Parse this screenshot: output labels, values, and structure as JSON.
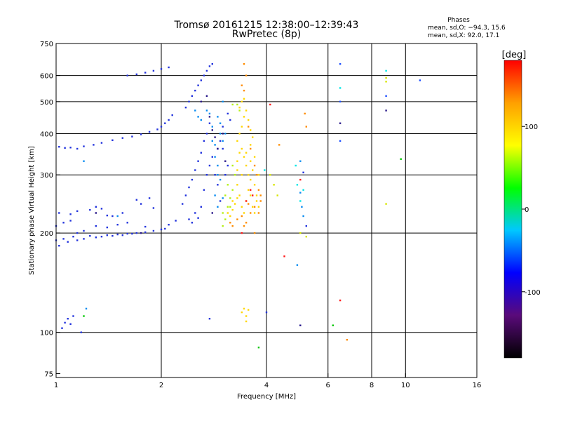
{
  "chart_data": {
    "type": "scatter",
    "title": "Tromsø 20161215 12:38:00–12:39:43",
    "subtitle": "RwPretec (8p)",
    "xlabel": "Frequency [MHz]",
    "ylabel": "Stationary phase Virtual Height [km]",
    "x_scale": "log",
    "y_scale": "log",
    "xlim": [
      1,
      16
    ],
    "ylim": [
      73,
      750
    ],
    "x_ticks": [
      1,
      2,
      4,
      6,
      8,
      10,
      16
    ],
    "y_ticks": [
      75,
      100,
      200,
      300,
      400,
      500,
      600,
      750
    ],
    "x_gridlines": [
      2,
      4,
      6,
      8,
      10
    ],
    "y_gridlines": [
      100,
      200,
      300,
      400,
      500,
      600
    ],
    "grid": true,
    "phases": {
      "title": "Phases",
      "line_o": "mean, sd,O: −94.3, 15.6",
      "line_x": "mean, sd,X:  92.0, 17.1"
    },
    "colorbar": {
      "label": "[deg]",
      "ticks": [
        100,
        0,
        -100
      ],
      "range": [
        -180,
        180
      ],
      "colors": [
        "#000000",
        "#5a0a7a",
        "#0000ff",
        "#00c8ff",
        "#00ff00",
        "#ffff00",
        "#ffa000",
        "#ff0000"
      ]
    },
    "series": [
      {
        "color": "#2233dd",
        "points": [
          [
            1.0,
            190
          ],
          [
            1.02,
            183
          ],
          [
            1.05,
            192
          ],
          [
            1.08,
            188
          ],
          [
            1.12,
            195
          ],
          [
            1.15,
            190
          ],
          [
            1.2,
            192
          ],
          [
            1.25,
            196
          ],
          [
            1.3,
            194
          ],
          [
            1.35,
            195
          ],
          [
            1.4,
            197
          ],
          [
            1.45,
            196
          ],
          [
            1.5,
            198
          ],
          [
            1.55,
            197
          ],
          [
            1.6,
            199
          ],
          [
            1.65,
            199
          ],
          [
            1.7,
            200
          ],
          [
            1.8,
            201
          ],
          [
            1.9,
            203
          ],
          [
            2.0,
            205
          ],
          [
            2.05,
            206
          ],
          [
            2.1,
            212
          ],
          [
            2.2,
            218
          ],
          [
            1.0,
            210
          ],
          [
            1.05,
            215
          ],
          [
            1.1,
            218
          ],
          [
            1.15,
            200
          ],
          [
            1.2,
            203
          ],
          [
            1.3,
            210
          ],
          [
            1.4,
            208
          ],
          [
            1.5,
            212
          ],
          [
            1.6,
            215
          ],
          [
            1.8,
            209
          ],
          [
            1.02,
            230
          ],
          [
            1.1,
            228
          ],
          [
            1.15,
            233
          ],
          [
            1.25,
            235
          ],
          [
            1.3,
            240
          ],
          [
            1.35,
            237
          ],
          [
            1.4,
            226
          ],
          [
            1.45,
            225
          ],
          [
            1.55,
            230
          ],
          [
            1.7,
            252
          ],
          [
            1.75,
            245
          ],
          [
            1.9,
            238
          ],
          [
            1.85,
            255
          ],
          [
            1.02,
            365
          ],
          [
            1.06,
            362
          ],
          [
            1.1,
            363
          ],
          [
            1.15,
            360
          ],
          [
            1.2,
            366
          ],
          [
            1.28,
            370
          ],
          [
            1.35,
            375
          ],
          [
            1.45,
            382
          ],
          [
            1.55,
            388
          ],
          [
            1.65,
            392
          ],
          [
            1.75,
            398
          ],
          [
            1.85,
            405
          ],
          [
            1.95,
            412
          ],
          [
            2.0,
            420
          ],
          [
            2.05,
            430
          ],
          [
            2.1,
            440
          ],
          [
            2.15,
            455
          ],
          [
            1.6,
            600
          ],
          [
            1.7,
            605
          ],
          [
            1.8,
            612
          ],
          [
            1.9,
            620
          ],
          [
            2.0,
            628
          ],
          [
            2.1,
            635
          ],
          [
            1.04,
            103
          ],
          [
            1.06,
            107
          ],
          [
            1.08,
            110
          ],
          [
            1.1,
            106
          ],
          [
            1.12,
            112
          ],
          [
            1.18,
            100
          ],
          [
            2.3,
            245
          ],
          [
            2.35,
            260
          ],
          [
            2.4,
            275
          ],
          [
            2.45,
            290
          ],
          [
            2.5,
            310
          ],
          [
            2.55,
            330
          ],
          [
            2.6,
            350
          ],
          [
            2.65,
            380
          ],
          [
            2.7,
            400
          ],
          [
            2.75,
            430
          ],
          [
            2.35,
            480
          ],
          [
            2.4,
            500
          ],
          [
            2.45,
            520
          ],
          [
            2.5,
            540
          ],
          [
            2.55,
            560
          ],
          [
            2.6,
            580
          ],
          [
            2.65,
            600
          ],
          [
            2.7,
            620
          ],
          [
            2.75,
            640
          ],
          [
            2.8,
            650
          ],
          [
            2.4,
            220
          ],
          [
            2.45,
            215
          ],
          [
            2.5,
            230
          ],
          [
            2.55,
            222
          ],
          [
            2.6,
            240
          ],
          [
            2.65,
            270
          ],
          [
            2.7,
            300
          ],
          [
            2.75,
            320
          ],
          [
            2.8,
            340
          ],
          [
            2.85,
            300
          ],
          [
            2.9,
            280
          ],
          [
            2.95,
            250
          ],
          [
            2.9,
            360
          ],
          [
            2.95,
            380
          ],
          [
            3.0,
            360
          ],
          [
            3.0,
            420
          ],
          [
            3.05,
            300
          ],
          [
            3.1,
            320
          ],
          [
            3.1,
            460
          ],
          [
            3.15,
            440
          ],
          [
            2.75,
            110
          ],
          [
            4.0,
            115
          ],
          [
            5.0,
            105
          ],
          [
            5.1,
            305
          ],
          [
            5.2,
            210
          ]
        ]
      },
      {
        "color": "#0a8cf0",
        "points": [
          [
            2.5,
            470
          ],
          [
            2.55,
            450
          ],
          [
            2.6,
            440
          ],
          [
            2.7,
            470
          ],
          [
            2.75,
            460
          ],
          [
            2.8,
            420
          ],
          [
            2.8,
            380
          ],
          [
            2.85,
            370
          ],
          [
            2.85,
            340
          ],
          [
            2.9,
            320
          ],
          [
            2.9,
            300
          ],
          [
            2.95,
            290
          ],
          [
            2.85,
            260
          ],
          [
            2.9,
            240
          ],
          [
            3.0,
            255
          ],
          [
            2.9,
            450
          ],
          [
            2.95,
            430
          ],
          [
            2.95,
            400
          ],
          [
            3.0,
            380
          ],
          [
            3.05,
            400
          ],
          [
            1.2,
            330
          ],
          [
            1.5,
            225
          ],
          [
            5.0,
            265
          ],
          [
            5.05,
            240
          ],
          [
            5.1,
            225
          ],
          [
            4.9,
            160
          ],
          [
            5.0,
            330
          ],
          [
            1.22,
            118
          ],
          [
            3.0,
            500
          ]
        ]
      },
      {
        "color": "#ffd700",
        "points": [
          [
            3.3,
            380
          ],
          [
            3.35,
            400
          ],
          [
            3.4,
            420
          ],
          [
            3.45,
            450
          ],
          [
            3.5,
            470
          ],
          [
            3.55,
            440
          ],
          [
            3.6,
            410
          ],
          [
            3.3,
            330
          ],
          [
            3.35,
            350
          ],
          [
            3.4,
            360
          ],
          [
            3.45,
            340
          ],
          [
            3.5,
            320
          ],
          [
            3.55,
            300
          ],
          [
            3.6,
            290
          ],
          [
            3.65,
            310
          ],
          [
            3.7,
            280
          ],
          [
            3.75,
            260
          ],
          [
            3.8,
            300
          ],
          [
            3.3,
            280
          ],
          [
            3.35,
            260
          ],
          [
            3.4,
            240
          ],
          [
            3.45,
            230
          ],
          [
            3.5,
            250
          ],
          [
            3.55,
            270
          ],
          [
            3.6,
            260
          ],
          [
            3.65,
            240
          ],
          [
            3.7,
            230
          ],
          [
            3.75,
            250
          ],
          [
            3.8,
            240
          ],
          [
            3.4,
            300
          ],
          [
            3.5,
            350
          ],
          [
            3.6,
            370
          ],
          [
            3.65,
            390
          ],
          [
            3.7,
            340
          ],
          [
            3.1,
            230
          ],
          [
            3.15,
            225
          ],
          [
            3.2,
            235
          ],
          [
            3.25,
            245
          ],
          [
            3.3,
            255
          ],
          [
            3.4,
            115
          ],
          [
            3.5,
            112
          ],
          [
            3.45,
            118
          ],
          [
            3.55,
            117
          ],
          [
            3.5,
            108
          ],
          [
            3.35,
            480
          ],
          [
            3.4,
            500
          ],
          [
            3.45,
            510
          ],
          [
            3.2,
            250
          ],
          [
            3.6,
            330
          ],
          [
            3.3,
            310
          ]
        ]
      },
      {
        "color": "#b4f014",
        "points": [
          [
            3.0,
            230
          ],
          [
            3.05,
            220
          ],
          [
            3.1,
            240
          ],
          [
            3.15,
            255
          ],
          [
            3.2,
            270
          ],
          [
            3.0,
            210
          ],
          [
            3.05,
            260
          ],
          [
            3.25,
            300
          ],
          [
            3.2,
            320
          ],
          [
            3.15,
            240
          ],
          [
            3.1,
            280
          ],
          [
            3.3,
            490
          ],
          [
            3.35,
            470
          ],
          [
            3.2,
            490
          ]
        ]
      },
      {
        "color": "#ff8c00",
        "points": [
          [
            3.55,
            420
          ],
          [
            3.6,
            360
          ],
          [
            3.7,
            320
          ],
          [
            3.75,
            300
          ],
          [
            3.8,
            270
          ],
          [
            3.85,
            250
          ],
          [
            3.7,
            240
          ],
          [
            3.6,
            230
          ],
          [
            3.45,
            210
          ],
          [
            3.5,
            215
          ],
          [
            3.3,
            220
          ],
          [
            3.4,
            225
          ],
          [
            3.55,
            245
          ],
          [
            3.8,
            230
          ],
          [
            3.85,
            260
          ],
          [
            3.7,
            200
          ],
          [
            3.15,
            215
          ],
          [
            3.2,
            210
          ],
          [
            3.4,
            560
          ],
          [
            3.45,
            540
          ],
          [
            3.5,
            600
          ],
          [
            3.45,
            650
          ],
          [
            4.35,
            370
          ],
          [
            5.2,
            420
          ],
          [
            5.15,
            460
          ],
          [
            6.8,
            95
          ]
        ]
      },
      {
        "color": "#ff1a1a",
        "points": [
          [
            3.5,
            250
          ],
          [
            3.6,
            270
          ],
          [
            3.65,
            260
          ],
          [
            4.1,
            490
          ],
          [
            4.5,
            170
          ],
          [
            3.4,
            200
          ],
          [
            6.5,
            125
          ],
          [
            5.0,
            290
          ]
        ]
      },
      {
        "color": "#2a1a8a",
        "points": [
          [
            2.6,
            500
          ],
          [
            2.7,
            520
          ],
          [
            2.75,
            450
          ],
          [
            2.8,
            410
          ],
          [
            2.85,
            390
          ],
          [
            2.9,
            360
          ],
          [
            3.0,
            400
          ],
          [
            2.8,
            230
          ],
          [
            3.05,
            330
          ],
          [
            1.3,
            230
          ],
          [
            1.75,
            200
          ],
          [
            5.0,
            105
          ],
          [
            6.5,
            430
          ],
          [
            8.8,
            470
          ]
        ]
      },
      {
        "color": "#00e6e6",
        "points": [
          [
            4.85,
            320
          ],
          [
            4.9,
            280
          ],
          [
            5.0,
            250
          ],
          [
            5.1,
            270
          ],
          [
            8.8,
            620
          ],
          [
            6.5,
            550
          ],
          [
            3.95,
            310
          ]
        ]
      },
      {
        "color": "#00c800",
        "points": [
          [
            1.2,
            112
          ],
          [
            9.7,
            335
          ],
          [
            3.8,
            90
          ],
          [
            6.2,
            105
          ]
        ]
      },
      {
        "color": "#d7e600",
        "points": [
          [
            5.0,
            200
          ],
          [
            5.2,
            195
          ],
          [
            8.8,
            575
          ],
          [
            8.8,
            590
          ],
          [
            8.8,
            245
          ],
          [
            4.1,
            300
          ],
          [
            4.2,
            280
          ],
          [
            4.3,
            260
          ]
        ]
      },
      {
        "color": "#1e50ff",
        "points": [
          [
            6.5,
            650
          ],
          [
            8.8,
            520
          ],
          [
            11.0,
            580
          ],
          [
            6.5,
            500
          ],
          [
            6.5,
            380
          ]
        ]
      }
    ]
  }
}
